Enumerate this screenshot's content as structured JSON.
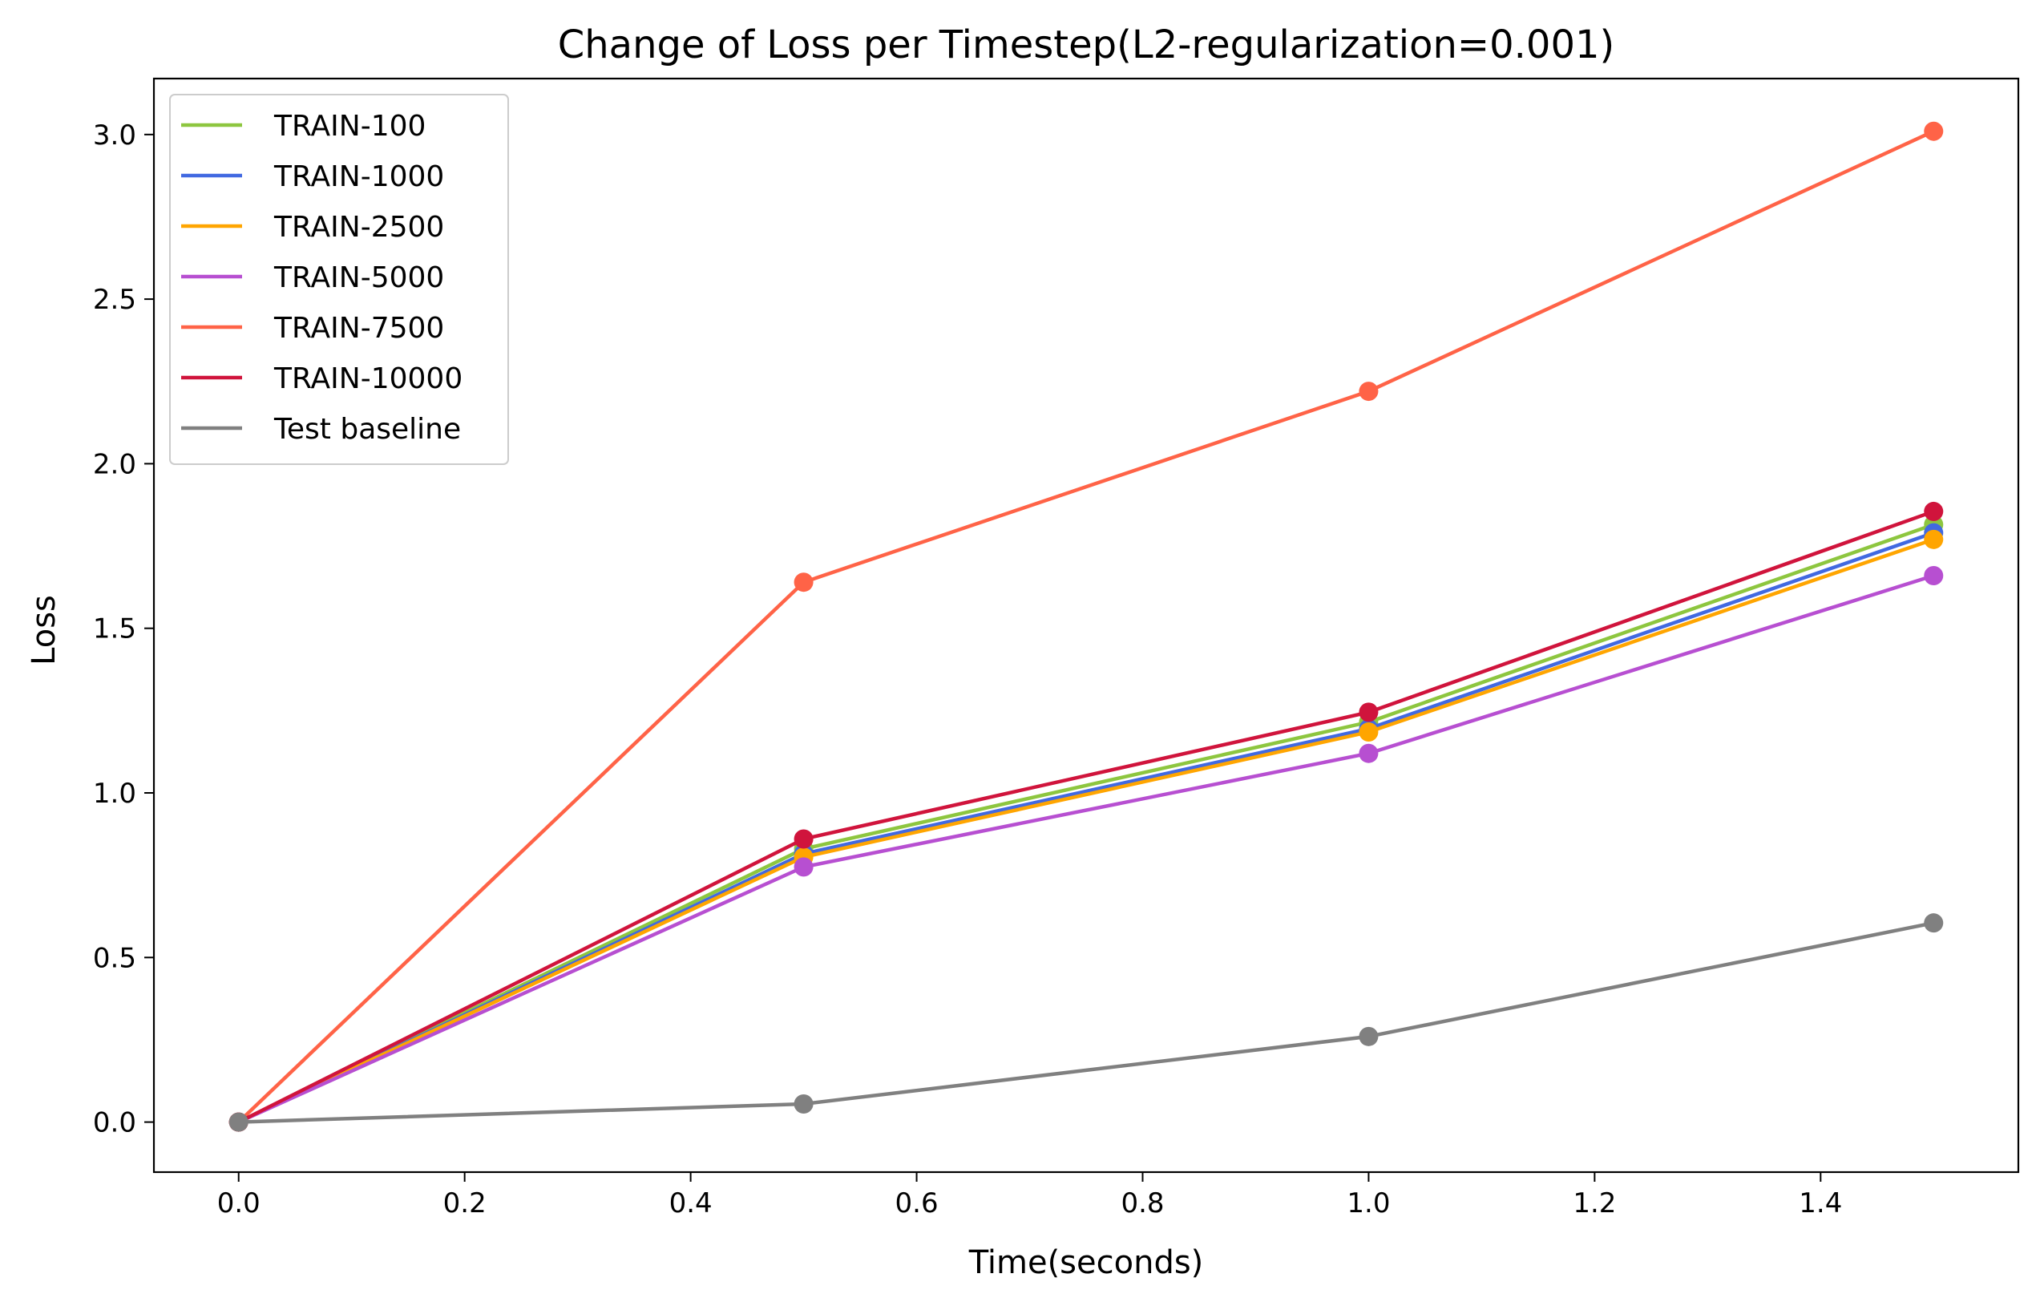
{
  "chart_data": {
    "type": "line",
    "title": "Change of Loss per Timestep(L2-regularization=0.001)",
    "xlabel": "Time(seconds)",
    "ylabel": "Loss",
    "x": [
      0.0,
      0.5,
      1.0,
      1.5
    ],
    "xlim": [
      -0.075,
      1.575
    ],
    "ylim": [
      -0.152,
      3.17
    ],
    "xticks": [
      0.0,
      0.2,
      0.4,
      0.6,
      0.8,
      1.0,
      1.2,
      1.4
    ],
    "xtick_labels": [
      "0.0",
      "0.2",
      "0.4",
      "0.6",
      "0.8",
      "1.0",
      "1.2",
      "1.4"
    ],
    "yticks": [
      0.0,
      0.5,
      1.0,
      1.5,
      2.0,
      2.5,
      3.0
    ],
    "ytick_labels": [
      "0.0",
      "0.5",
      "1.0",
      "1.5",
      "2.0",
      "2.5",
      "3.0"
    ],
    "grid": false,
    "legend_position": "top-left",
    "series": [
      {
        "name": "TRAIN-100",
        "color": "#8dc63f",
        "values": [
          0.0,
          0.83,
          1.215,
          1.815
        ]
      },
      {
        "name": "TRAIN-1000",
        "color": "#4169e1",
        "values": [
          0.0,
          0.815,
          1.195,
          1.79
        ]
      },
      {
        "name": "TRAIN-2500",
        "color": "#ffa500",
        "values": [
          0.0,
          0.805,
          1.185,
          1.77
        ]
      },
      {
        "name": "TRAIN-5000",
        "color": "#b74fd1",
        "values": [
          0.0,
          0.775,
          1.12,
          1.66
        ]
      },
      {
        "name": "TRAIN-7500",
        "color": "#ff6347",
        "values": [
          0.0,
          1.64,
          2.22,
          3.01
        ]
      },
      {
        "name": "TRAIN-10000",
        "color": "#d0143c",
        "values": [
          0.0,
          0.86,
          1.245,
          1.855
        ]
      },
      {
        "name": "Test baseline",
        "color": "#808080",
        "values": [
          0.0,
          0.055,
          0.26,
          0.605
        ]
      }
    ]
  }
}
